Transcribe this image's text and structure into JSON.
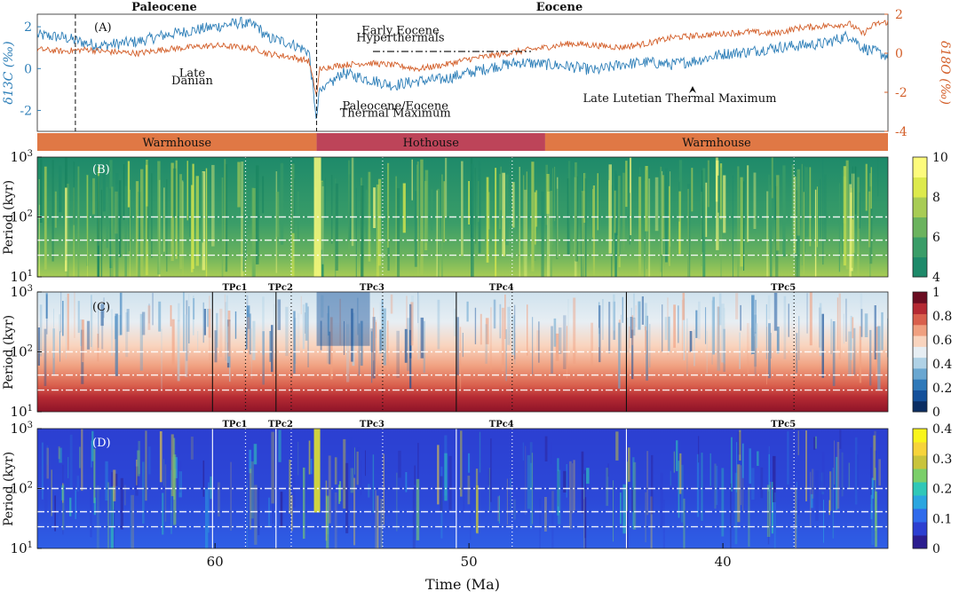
{
  "chart_data": [
    {
      "type": "line",
      "panel": "A",
      "panel_label": "(A)",
      "x_range": [
        67,
        33.5
      ],
      "epochs": [
        {
          "label": "Paleocene"
        },
        {
          "label": "Eocene"
        }
      ],
      "series": [
        {
          "name": "δ13C (‰)",
          "color": "#2e7fb8",
          "axis": "left",
          "x": [
            67,
            66,
            65,
            64.5,
            63,
            62,
            61,
            60,
            59,
            58.3,
            58,
            57,
            56.3,
            56.0,
            55.9,
            55.5,
            55,
            54,
            53,
            52,
            51,
            50,
            49,
            48,
            47,
            46,
            45,
            44,
            43,
            42,
            41,
            40,
            39,
            38,
            37,
            36,
            35,
            34.5,
            34,
            33.5
          ],
          "y": [
            1.6,
            1.5,
            1.2,
            1.1,
            1.3,
            1.6,
            1.8,
            2.0,
            2.2,
            2.0,
            1.5,
            1.2,
            0.8,
            -2.6,
            -1.0,
            -0.8,
            -0.2,
            -0.5,
            -0.8,
            -0.6,
            -0.5,
            -0.2,
            0.1,
            0.3,
            0.2,
            0.1,
            -0.1,
            0.2,
            0.3,
            0.2,
            0.4,
            0.7,
            0.8,
            1.0,
            1.1,
            1.2,
            1.6,
            1.0,
            0.8,
            0.6
          ]
        },
        {
          "name": "δ18O (‰)",
          "color": "#d35f2a",
          "axis": "right",
          "x": [
            67,
            66,
            65,
            64.5,
            63,
            62,
            61,
            60,
            59,
            58.3,
            58,
            57,
            56.3,
            56.0,
            55.9,
            55.5,
            55,
            54,
            53,
            52,
            51,
            50,
            49,
            48,
            47,
            46,
            45,
            44,
            43,
            42,
            41,
            40,
            39,
            38,
            37,
            36,
            35,
            34.5,
            34,
            33.5
          ],
          "y": [
            0.2,
            0.1,
            0.2,
            0.1,
            0.0,
            0.2,
            0.3,
            0.4,
            0.3,
            0.2,
            0.0,
            -0.2,
            -0.4,
            -2.3,
            -0.8,
            -0.7,
            -0.6,
            -0.5,
            -0.6,
            -0.8,
            -0.6,
            -0.3,
            -0.1,
            0.1,
            0.3,
            0.5,
            0.4,
            0.3,
            0.5,
            0.8,
            0.9,
            1.0,
            1.1,
            1.0,
            1.3,
            1.4,
            1.5,
            1.0,
            1.5,
            1.6
          ]
        }
      ],
      "ylabel_left": "δ13C (‰)",
      "ylim_left": [
        -3,
        2.6
      ],
      "yticks_left": [
        "2",
        "0",
        "-2"
      ],
      "ylabel_right": "δ18O (‰)",
      "ylim_right": [
        -4,
        2
      ],
      "yticks_right": [
        "2",
        "0",
        "-2",
        "-4"
      ],
      "vertical_lines": [
        65.5,
        56.0
      ],
      "annotations": [
        {
          "text": "Late",
          "x": 60.9,
          "y": -0.4
        },
        {
          "text": "Danian",
          "x": 60.9,
          "y": -0.75
        },
        {
          "text": "Early Eocene",
          "x": 52.7,
          "y": 1.65
        },
        {
          "text": "Hyperthermals",
          "x": 52.7,
          "y": 1.3
        },
        {
          "text": "Paleocene/Eocene",
          "x": 52.9,
          "y": -1.95
        },
        {
          "text": "Thermal Maximum",
          "x": 52.9,
          "y": -2.3
        },
        {
          "text": "Late Lutetian Thermal Maximum",
          "x": 41.7,
          "y": -1.6
        }
      ],
      "climate_states": [
        {
          "label": "Warmhouse",
          "from": 67,
          "to": 56.0,
          "color": "#e07845"
        },
        {
          "label": "Hothouse",
          "from": 56.0,
          "to": 47.0,
          "color": "#bd4459"
        },
        {
          "label": "Warmhouse",
          "from": 47.0,
          "to": 33.5,
          "color": "#e07845"
        }
      ]
    },
    {
      "type": "heatmap",
      "panel": "B",
      "panel_label": "(B)",
      "colormap": [
        "#1e8a6a",
        "#3a9d68",
        "#6bb35e",
        "#a8cc55",
        "#ddea4c",
        "#fdfb7c"
      ],
      "clim": [
        4,
        10
      ],
      "colorbar_ticks": [
        "10",
        "8",
        "6",
        "4"
      ],
      "yticks": [
        "10^3",
        "10^2",
        "10^1"
      ],
      "ylabel": "Period (kyr)"
    },
    {
      "type": "heatmap",
      "panel": "C",
      "panel_label": "(C)",
      "colormap": [
        "#0b2e63",
        "#14509a",
        "#2f79b9",
        "#6aa7d1",
        "#b0d2e6",
        "#e7eef3",
        "#f9d4be",
        "#f0a080",
        "#d9604d",
        "#b52a33",
        "#6b0d21"
      ],
      "clim": [
        0,
        1
      ],
      "colorbar_ticks": [
        "1",
        "0.8",
        "0.6",
        "0.4",
        "0.2",
        "0"
      ],
      "yticks": [
        "10^3",
        "10^2",
        "10^1"
      ],
      "ylabel": "Period (kyr)",
      "tipping_points": [
        {
          "label": "TPc1",
          "x": 58.8
        },
        {
          "label": "TPc2",
          "x": 57.0
        },
        {
          "label": "TPc3",
          "x": 53.4
        },
        {
          "label": "TPc4",
          "x": 48.3
        },
        {
          "label": "TPc5",
          "x": 37.2
        }
      ]
    },
    {
      "type": "heatmap",
      "panel": "D",
      "panel_label": "(D)",
      "colormap": [
        "#2b1d8f",
        "#2c3fd1",
        "#2f6bec",
        "#2aa6e0",
        "#2fc8b8",
        "#7bcf6a",
        "#c9c43b",
        "#f7d43a",
        "#f9f51b"
      ],
      "clim": [
        0,
        0.4
      ],
      "colorbar_ticks": [
        "0.4",
        "0.3",
        "0.2",
        "0.1",
        "0"
      ],
      "yticks": [
        "10^3",
        "10^2",
        "10^1"
      ],
      "ylabel": "Period (kyr)",
      "tipping_points": [
        {
          "label": "TPc1",
          "x": 58.8
        },
        {
          "label": "TPc2",
          "x": 57.0
        },
        {
          "label": "TPc3",
          "x": 53.4
        },
        {
          "label": "TPc4",
          "x": 48.3
        },
        {
          "label": "TPc5",
          "x": 37.2
        }
      ]
    }
  ],
  "x_axis": {
    "label": "Time (Ma)",
    "range": [
      67,
      33.5
    ],
    "ticks": [
      60,
      50,
      40
    ],
    "tick_labels": [
      "60",
      "50",
      "40"
    ]
  }
}
